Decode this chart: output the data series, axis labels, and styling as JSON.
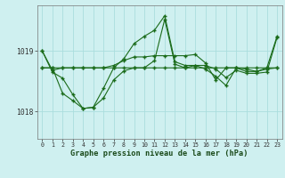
{
  "xlabel": "Graphe pression niveau de la mer (hPa)",
  "x_labels": [
    "0",
    "1",
    "2",
    "3",
    "4",
    "5",
    "6",
    "7",
    "8",
    "9",
    "10",
    "11",
    "12",
    "13",
    "14",
    "15",
    "16",
    "17",
    "18",
    "19",
    "20",
    "21",
    "22",
    "23"
  ],
  "ylim": [
    1017.55,
    1019.75
  ],
  "yticks": [
    1018,
    1019
  ],
  "background_color": "#cff0f0",
  "grid_color": "#aadddd",
  "line_color": "#1a6b1a",
  "s1": [
    1019.0,
    1018.68,
    1018.72,
    1018.72,
    1018.72,
    1018.72,
    1018.72,
    1018.72,
    1018.72,
    1018.72,
    1018.72,
    1018.72,
    1018.72,
    1018.72,
    1018.72,
    1018.72,
    1018.72,
    1018.72,
    1018.72,
    1018.72,
    1018.72,
    1018.72,
    1018.72,
    1018.72
  ],
  "s2": [
    1019.0,
    1018.65,
    1018.55,
    1018.28,
    1018.05,
    1018.07,
    1018.38,
    1018.72,
    1018.87,
    1019.12,
    1019.24,
    1019.34,
    1019.58,
    1018.82,
    1018.76,
    1018.76,
    1018.76,
    1018.7,
    1018.56,
    1018.68,
    1018.63,
    1018.63,
    1018.65,
    1019.22
  ],
  "s3": [
    1018.72,
    1018.72,
    1018.3,
    1018.18,
    1018.05,
    1018.07,
    1018.22,
    1018.52,
    1018.67,
    1018.72,
    1018.72,
    1018.84,
    1019.52,
    1018.78,
    1018.72,
    1018.76,
    1018.7,
    1018.58,
    1018.43,
    1018.72,
    1018.7,
    1018.66,
    1018.7,
    1018.72
  ],
  "s4": [
    1018.72,
    1018.72,
    1018.72,
    1018.72,
    1018.72,
    1018.72,
    1018.72,
    1018.76,
    1018.84,
    1018.9,
    1018.9,
    1018.92,
    1018.92,
    1018.92,
    1018.92,
    1018.94,
    1018.8,
    1018.52,
    1018.72,
    1018.72,
    1018.66,
    1018.66,
    1018.72,
    1019.24
  ]
}
